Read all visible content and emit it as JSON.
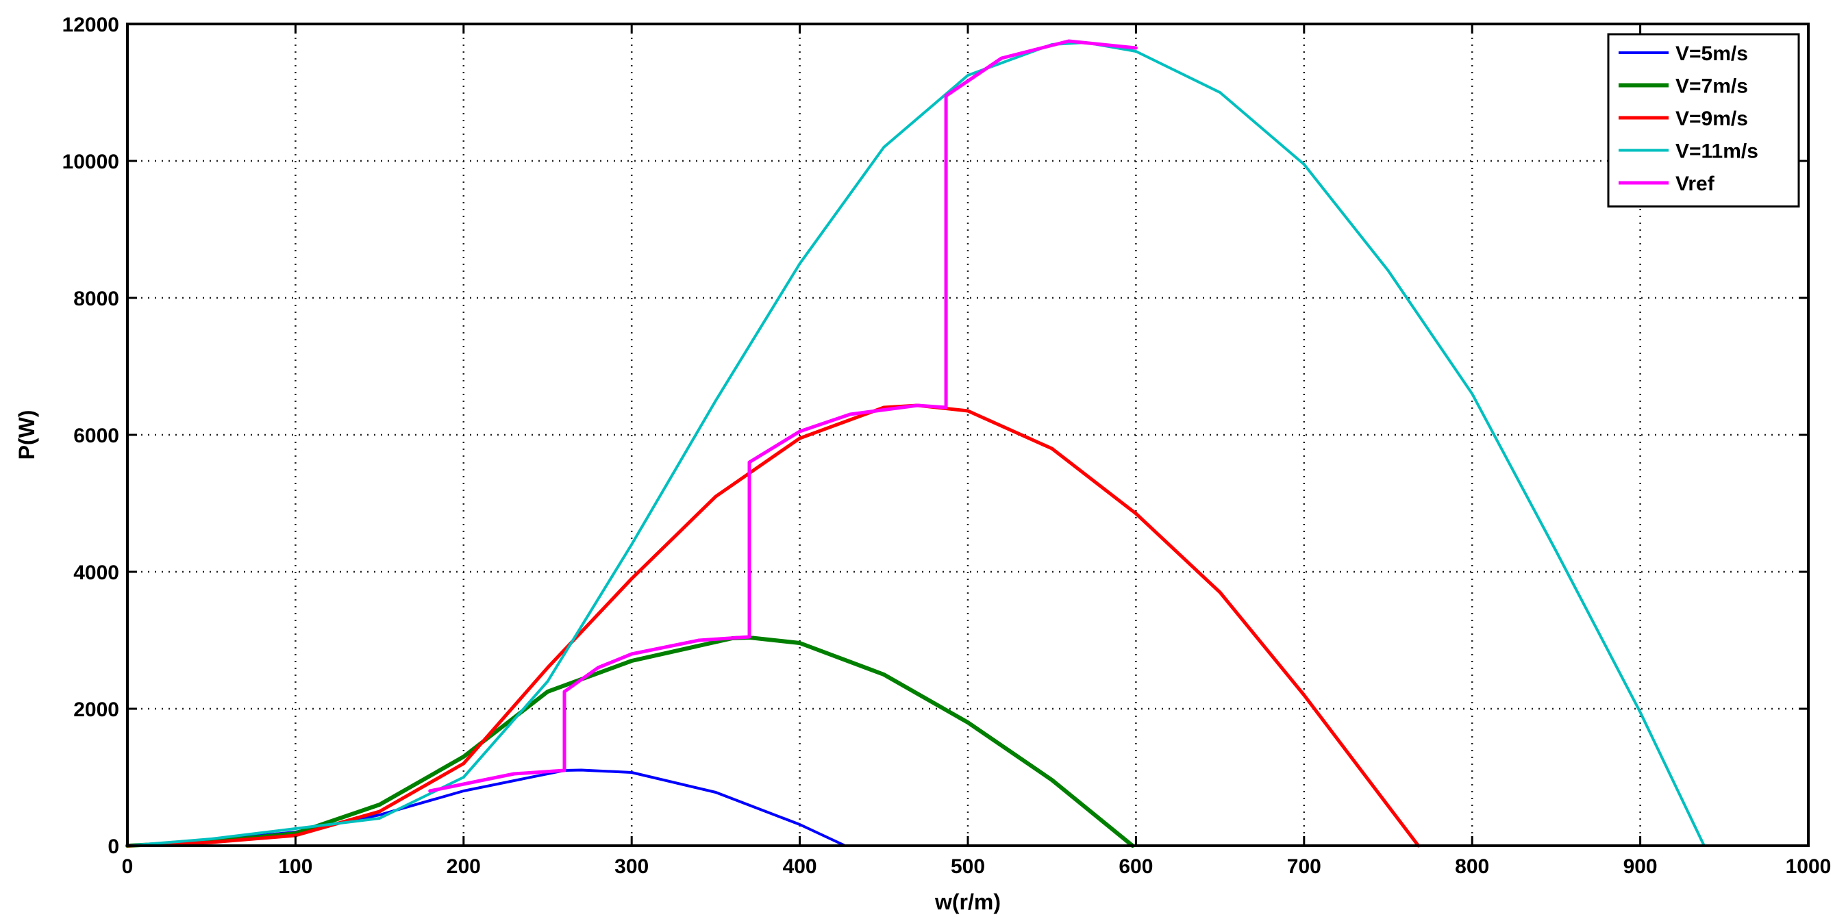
{
  "chart_data": {
    "type": "line",
    "xlabel": "w(r/m)",
    "ylabel": "P(W)",
    "xlim": [
      0,
      1000
    ],
    "ylim": [
      0,
      12000
    ],
    "xticks": [
      0,
      100,
      200,
      300,
      400,
      500,
      600,
      700,
      800,
      900,
      1000
    ],
    "yticks": [
      0,
      2000,
      4000,
      6000,
      8000,
      10000,
      12000
    ],
    "xtick_labels": [
      "0",
      "100",
      "200",
      "300",
      "400",
      "500",
      "600",
      "700",
      "800",
      "900",
      "1000"
    ],
    "ytick_labels": [
      "0",
      "2000",
      "4000",
      "6000",
      "8000",
      "10000",
      "12000"
    ],
    "grid": true,
    "legend_position": "top-right",
    "series": [
      {
        "name": "V=5m/s",
        "color": "#0000ff",
        "x": [
          0,
          50,
          100,
          150,
          200,
          260,
          270,
          300,
          350,
          400,
          427
        ],
        "y": [
          0,
          80,
          200,
          450,
          800,
          1100,
          1105,
          1070,
          780,
          310,
          0
        ]
      },
      {
        "name": "V=7m/s",
        "color": "#007f00",
        "x": [
          0,
          50,
          100,
          150,
          200,
          250,
          300,
          360,
          370,
          400,
          450,
          500,
          550,
          598
        ],
        "y": [
          0,
          60,
          180,
          600,
          1300,
          2250,
          2700,
          3030,
          3040,
          2960,
          2500,
          1800,
          960,
          0
        ]
      },
      {
        "name": "V=9m/s",
        "color": "#ff0000",
        "x": [
          0,
          50,
          100,
          150,
          200,
          250,
          300,
          350,
          400,
          450,
          470,
          500,
          550,
          600,
          650,
          700,
          768
        ],
        "y": [
          0,
          50,
          150,
          500,
          1200,
          2600,
          3900,
          5100,
          5950,
          6400,
          6430,
          6350,
          5800,
          4850,
          3700,
          2200,
          0
        ]
      },
      {
        "name": "V=11m/s",
        "color": "#00bfbf",
        "x": [
          0,
          50,
          100,
          150,
          200,
          250,
          300,
          350,
          400,
          450,
          500,
          550,
          570,
          600,
          650,
          700,
          750,
          800,
          850,
          900,
          938
        ],
        "y": [
          0,
          100,
          250,
          400,
          1000,
          2400,
          4400,
          6500,
          8500,
          10200,
          11250,
          11700,
          11730,
          11600,
          11000,
          9950,
          8400,
          6600,
          4300,
          1950,
          0
        ]
      },
      {
        "name": "Vref",
        "color": "#ff00ff",
        "x": [
          180,
          200,
          230,
          260,
          260,
          280,
          300,
          340,
          370,
          370,
          400,
          430,
          470,
          487,
          487,
          520,
          560,
          600
        ],
        "y": [
          800,
          900,
          1050,
          1100,
          2250,
          2600,
          2800,
          3000,
          3050,
          5600,
          6050,
          6300,
          6430,
          6400,
          10950,
          11500,
          11750,
          11650
        ]
      }
    ]
  }
}
